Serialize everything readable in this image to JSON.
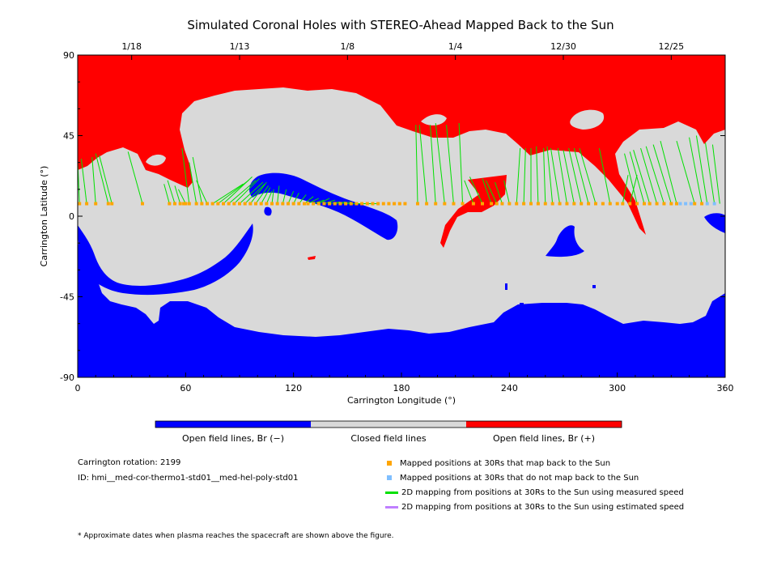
{
  "chart_data": {
    "type": "heatmap",
    "title": "Simulated Coronal Holes with STEREO-Ahead Mapped Back to the Sun",
    "xlabel": "Carrington Longitude (°)",
    "ylabel": "Carrington Latitude (°)",
    "xlim": [
      0,
      360
    ],
    "ylim": [
      -90,
      90
    ],
    "x_ticks": [
      0,
      60,
      120,
      180,
      240,
      300,
      360
    ],
    "y_ticks": [
      -90,
      -45,
      0,
      45,
      90
    ],
    "top_axis_dates": [
      {
        "label": "1/18",
        "lon": 30
      },
      {
        "label": "1/13",
        "lon": 90
      },
      {
        "label": "1/8",
        "lon": 150
      },
      {
        "label": "1/4",
        "lon": 210
      },
      {
        "label": "12/30",
        "lon": 270
      },
      {
        "label": "12/25",
        "lon": 330
      }
    ],
    "colors": {
      "open_negative": "#0000ff",
      "closed": "#d9d9d9",
      "open_positive": "#ff0000",
      "mapped": "#ffa500",
      "unmapped": "#7fbfff",
      "measured": "#00e000",
      "estimated": "#bf7fff"
    },
    "colorbar": [
      {
        "label": "Open field lines, Br (−)",
        "color": "#0000ff"
      },
      {
        "label": "Closed field lines",
        "color": "#d9d9d9"
      },
      {
        "label": "Open field lines, Br (+)",
        "color": "#ff0000"
      }
    ],
    "grid": false,
    "mapped_points_lat": 7,
    "mapped_lon": [
      1,
      5,
      10,
      17,
      19,
      36,
      51,
      54,
      57,
      59,
      60,
      62,
      66,
      69,
      72,
      75,
      78,
      81,
      84,
      87,
      90,
      93,
      96,
      99,
      102,
      105,
      108,
      111,
      114,
      117,
      120,
      123,
      126,
      128,
      131,
      134,
      137,
      140,
      143,
      146,
      149,
      152,
      155,
      158,
      161,
      164,
      167,
      170,
      173,
      176,
      179,
      182,
      189,
      194,
      199,
      204,
      209,
      214,
      220,
      225,
      230,
      233,
      236,
      240,
      244,
      248,
      252,
      256,
      260,
      264,
      268,
      272,
      276,
      280,
      284,
      288,
      292,
      296,
      300,
      303,
      307,
      311,
      315,
      318,
      322,
      326,
      330,
      333,
      343,
      347
    ],
    "unmapped_lon": [
      335,
      338,
      341,
      350,
      354
    ],
    "mapping_lines": [
      [
        1,
        7,
        0,
        30
      ],
      [
        5,
        7,
        2,
        32
      ],
      [
        10,
        7,
        8,
        33
      ],
      [
        17,
        7,
        10,
        35
      ],
      [
        19,
        7,
        12,
        34
      ],
      [
        36,
        7,
        28,
        36
      ],
      [
        51,
        7,
        48,
        18
      ],
      [
        54,
        7,
        50,
        20
      ],
      [
        57,
        7,
        54,
        17
      ],
      [
        60,
        7,
        56,
        15
      ],
      [
        62,
        7,
        58,
        38
      ],
      [
        66,
        7,
        62,
        30
      ],
      [
        69,
        7,
        64,
        33
      ],
      [
        72,
        7,
        66,
        20
      ],
      [
        75,
        7,
        92,
        18
      ],
      [
        78,
        7,
        95,
        20
      ],
      [
        81,
        7,
        97,
        22
      ],
      [
        84,
        7,
        99,
        20
      ],
      [
        87,
        7,
        101,
        21
      ],
      [
        90,
        7,
        103,
        19
      ],
      [
        93,
        7,
        104,
        18
      ],
      [
        96,
        7,
        105,
        19
      ],
      [
        99,
        7,
        106,
        17
      ],
      [
        102,
        7,
        107,
        16
      ],
      [
        105,
        7,
        108,
        14
      ],
      [
        108,
        7,
        109,
        15
      ],
      [
        111,
        7,
        112,
        17
      ],
      [
        114,
        7,
        116,
        15
      ],
      [
        117,
        7,
        120,
        14
      ],
      [
        120,
        7,
        123,
        13
      ],
      [
        123,
        7,
        127,
        12
      ],
      [
        126,
        7,
        131,
        11
      ],
      [
        128,
        7,
        134,
        10
      ],
      [
        131,
        7,
        137,
        9
      ],
      [
        134,
        7,
        140,
        10
      ],
      [
        137,
        7,
        143,
        9
      ],
      [
        140,
        7,
        146,
        8
      ],
      [
        143,
        7,
        149,
        8
      ],
      [
        146,
        7,
        152,
        8
      ],
      [
        149,
        7,
        155,
        7
      ],
      [
        152,
        7,
        158,
        7
      ],
      [
        155,
        7,
        161,
        7
      ],
      [
        158,
        7,
        164,
        7
      ],
      [
        161,
        7,
        167,
        7
      ],
      [
        189,
        7,
        188,
        51
      ],
      [
        194,
        7,
        190,
        51
      ],
      [
        199,
        7,
        196,
        51
      ],
      [
        204,
        7,
        199,
        52
      ],
      [
        209,
        7,
        205,
        51
      ],
      [
        214,
        7,
        212,
        52
      ],
      [
        220,
        7,
        215,
        20
      ],
      [
        225,
        7,
        218,
        22
      ],
      [
        230,
        7,
        225,
        21
      ],
      [
        233,
        7,
        227,
        20
      ],
      [
        236,
        7,
        232,
        19
      ],
      [
        240,
        7,
        237,
        20
      ],
      [
        244,
        7,
        246,
        38
      ],
      [
        248,
        7,
        249,
        38
      ],
      [
        252,
        7,
        252,
        38
      ],
      [
        256,
        7,
        255,
        39
      ],
      [
        260,
        7,
        259,
        38
      ],
      [
        264,
        7,
        261,
        39
      ],
      [
        268,
        7,
        263,
        38
      ],
      [
        272,
        7,
        267,
        38
      ],
      [
        276,
        7,
        270,
        37
      ],
      [
        280,
        7,
        273,
        38
      ],
      [
        284,
        7,
        276,
        38
      ],
      [
        288,
        7,
        279,
        38
      ],
      [
        296,
        7,
        290,
        38
      ],
      [
        303,
        7,
        306,
        23
      ],
      [
        307,
        7,
        311,
        23
      ],
      [
        311,
        7,
        304,
        35
      ],
      [
        315,
        7,
        307,
        36
      ],
      [
        318,
        7,
        309,
        37
      ],
      [
        322,
        7,
        313,
        38
      ],
      [
        326,
        7,
        316,
        39
      ],
      [
        330,
        7,
        320,
        40
      ],
      [
        333,
        7,
        324,
        42
      ],
      [
        343,
        7,
        333,
        42
      ],
      [
        347,
        7,
        340,
        44
      ],
      [
        350,
        7,
        344,
        45
      ],
      [
        354,
        7,
        349,
        41
      ],
      [
        357,
        7,
        353,
        40
      ]
    ]
  },
  "info": {
    "rotation": "Carrington rotation: 2199",
    "id": "ID: hmi__med-cor-thermo1-std01__med-hel-poly-std01"
  },
  "legend": {
    "mapped": "Mapped positions at 30Rs that map back to the Sun",
    "unmapped": "Mapped positions at 30Rs that do not map back to the Sun",
    "measured": "2D mapping from positions at 30Rs to the Sun using measured speed",
    "estimated": "2D mapping from positions at 30Rs to the Sun using estimated speed"
  },
  "footnote": "* Approximate dates when plasma reaches the spacecraft are shown above the figure."
}
